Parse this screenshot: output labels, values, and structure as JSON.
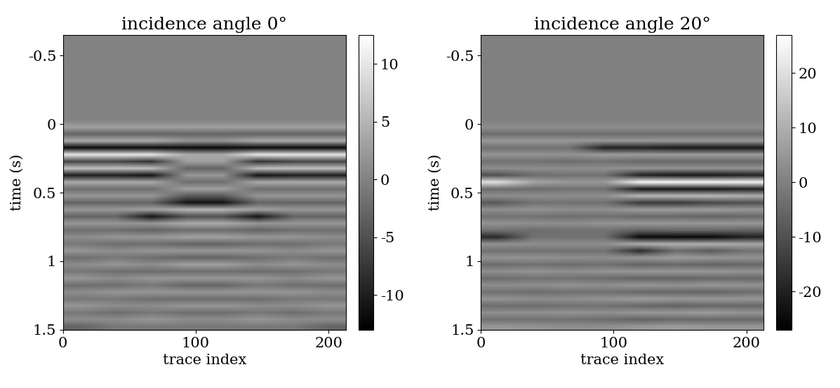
{
  "chart_data": [
    {
      "type": "heatmap",
      "title": "incidence angle 0°",
      "x_label": "trace index",
      "y_label": "time (s)",
      "xlim": [
        0,
        213
      ],
      "ylim": [
        1.5,
        -0.65
      ],
      "xticks": [
        0,
        100,
        200
      ],
      "yticks": [
        -0.5,
        0,
        0.5,
        1,
        1.5
      ],
      "colorbar_range": [
        -13,
        12.5
      ],
      "colorbar_ticks": [
        -10,
        -5,
        0,
        5,
        10
      ],
      "cells": [
        [
          0,
          0,
          0,
          0,
          0,
          0,
          0,
          0
        ],
        [
          0,
          0,
          0,
          0,
          0,
          0,
          0,
          0
        ],
        [
          0,
          0,
          0,
          0,
          0,
          0,
          0,
          0
        ],
        [
          0,
          0,
          0,
          0,
          0,
          0,
          0,
          0
        ],
        [
          0,
          0,
          0,
          0,
          0,
          0,
          0,
          0
        ],
        [
          0,
          0,
          0,
          0,
          0,
          0,
          0,
          0
        ],
        [
          0,
          0,
          0,
          0,
          0,
          0,
          0,
          0
        ],
        [
          0,
          0,
          0,
          0,
          0,
          0,
          0,
          0
        ],
        [
          0,
          0,
          0,
          0,
          0,
          0,
          0,
          0
        ],
        [
          0,
          0,
          0,
          0,
          0,
          0,
          0,
          0
        ],
        [
          0,
          0,
          0,
          0,
          0,
          0,
          0,
          0
        ],
        [
          0,
          0,
          0,
          0,
          0,
          0,
          0,
          0
        ],
        [
          0,
          0,
          0,
          0,
          0,
          0,
          0,
          0
        ],
        [
          3,
          3,
          3,
          3,
          3,
          3,
          3,
          3
        ],
        [
          -3,
          -3,
          -3,
          -3,
          -3,
          -3,
          -3,
          -3
        ],
        [
          4,
          4,
          4,
          2,
          2,
          4,
          4,
          4
        ],
        [
          -12,
          -12,
          -12,
          -12,
          -12,
          -12,
          -12,
          -12
        ],
        [
          10,
          10,
          10,
          4,
          4,
          10,
          10,
          10
        ],
        [
          -6,
          -6,
          -8,
          3,
          3,
          -8,
          -6,
          -6
        ],
        [
          6,
          6,
          6,
          -3,
          -3,
          6,
          6,
          6
        ],
        [
          -10,
          -10,
          -11,
          2,
          2,
          -11,
          -10,
          -10
        ],
        [
          4,
          4,
          4,
          -2,
          -2,
          4,
          4,
          4
        ],
        [
          -2,
          -2,
          -2,
          3,
          3,
          -2,
          -2,
          -2
        ],
        [
          2,
          2,
          2,
          -4,
          -4,
          2,
          2,
          2
        ],
        [
          -3,
          -3,
          -3,
          -11,
          -11,
          -3,
          -3,
          -3
        ],
        [
          2,
          2,
          3,
          5,
          5,
          3,
          2,
          2
        ],
        [
          -3,
          -3,
          -11,
          -5,
          -5,
          -11,
          -3,
          -3
        ],
        [
          2,
          2,
          2,
          4,
          4,
          2,
          2,
          2
        ],
        [
          -2,
          -2,
          -3,
          -2,
          -2,
          -3,
          -2,
          -2
        ],
        [
          1,
          2,
          2,
          3,
          3,
          2,
          2,
          1
        ],
        [
          -1,
          -2,
          -2,
          -3,
          -3,
          -2,
          -2,
          -1
        ],
        [
          2,
          1,
          2,
          2,
          2,
          2,
          1,
          2
        ],
        [
          -2,
          -1,
          -2,
          -3,
          -3,
          -2,
          -1,
          -2
        ],
        [
          1,
          2,
          1,
          3,
          3,
          1,
          2,
          1
        ],
        [
          -1,
          -2,
          -2,
          -2,
          -2,
          -2,
          -2,
          -1
        ],
        [
          2,
          1,
          2,
          2,
          2,
          2,
          1,
          2
        ],
        [
          -2,
          -2,
          -1,
          -3,
          -3,
          -1,
          -2,
          -2
        ],
        [
          1,
          2,
          2,
          2,
          2,
          2,
          2,
          1
        ],
        [
          -1,
          -1,
          -2,
          -2,
          -2,
          -2,
          -1,
          -1
        ],
        [
          2,
          1,
          1,
          2,
          2,
          1,
          1,
          2
        ],
        [
          -1,
          -2,
          -1,
          -2,
          -2,
          -1,
          -2,
          -1
        ],
        [
          1,
          1,
          2,
          1,
          1,
          2,
          1,
          1
        ],
        [
          -3,
          -1,
          -1,
          -1,
          -1,
          -1,
          -1,
          -3
        ]
      ]
    },
    {
      "type": "heatmap",
      "title": "incidence angle 20°",
      "x_label": "trace index",
      "y_label": "time (s)",
      "xlim": [
        0,
        213
      ],
      "ylim": [
        1.5,
        -0.65
      ],
      "xticks": [
        0,
        100,
        200
      ],
      "yticks": [
        -0.5,
        0,
        0.5,
        1,
        1.5
      ],
      "colorbar_range": [
        -27,
        27
      ],
      "colorbar_ticks": [
        -20,
        -10,
        0,
        10,
        20
      ],
      "cells": [
        [
          0,
          0,
          0,
          0,
          0,
          0,
          0,
          0
        ],
        [
          0,
          0,
          0,
          0,
          0,
          0,
          0,
          0
        ],
        [
          0,
          0,
          0,
          0,
          0,
          0,
          0,
          0
        ],
        [
          0,
          0,
          0,
          0,
          0,
          0,
          0,
          0
        ],
        [
          0,
          0,
          0,
          0,
          0,
          0,
          0,
          0
        ],
        [
          0,
          0,
          0,
          0,
          0,
          0,
          0,
          0
        ],
        [
          0,
          0,
          0,
          0,
          0,
          0,
          0,
          0
        ],
        [
          0,
          0,
          0,
          0,
          0,
          0,
          0,
          0
        ],
        [
          0,
          0,
          0,
          0,
          0,
          0,
          0,
          0
        ],
        [
          0,
          0,
          0,
          0,
          0,
          0,
          0,
          0
        ],
        [
          0,
          0,
          0,
          0,
          0,
          0,
          0,
          0
        ],
        [
          0,
          0,
          0,
          0,
          0,
          0,
          0,
          0
        ],
        [
          0,
          0,
          0,
          0,
          0,
          0,
          0,
          0
        ],
        [
          3,
          3,
          3,
          3,
          3,
          3,
          3,
          3
        ],
        [
          -4,
          -4,
          -4,
          -4,
          -4,
          -4,
          -4,
          -4
        ],
        [
          5,
          5,
          5,
          5,
          5,
          5,
          5,
          5
        ],
        [
          -3,
          -3,
          -3,
          -20,
          -20,
          -22,
          -22,
          -22
        ],
        [
          4,
          4,
          4,
          6,
          6,
          6,
          6,
          6
        ],
        [
          -3,
          -3,
          -4,
          -3,
          -5,
          -5,
          -5,
          -5
        ],
        [
          3,
          3,
          3,
          3,
          4,
          4,
          4,
          4
        ],
        [
          -10,
          -4,
          -3,
          -3,
          -20,
          -22,
          -22,
          -20
        ],
        [
          20,
          8,
          5,
          5,
          25,
          25,
          25,
          24
        ],
        [
          -4,
          -4,
          -3,
          -3,
          -22,
          -22,
          -22,
          -20
        ],
        [
          3,
          3,
          3,
          3,
          12,
          12,
          12,
          10
        ],
        [
          -8,
          -3,
          -3,
          -3,
          -15,
          -15,
          -12,
          -10
        ],
        [
          3,
          4,
          3,
          3,
          6,
          6,
          6,
          5
        ],
        [
          -3,
          -3,
          -4,
          -3,
          -5,
          -5,
          -6,
          -5
        ],
        [
          4,
          3,
          3,
          4,
          5,
          5,
          5,
          5
        ],
        [
          -3,
          -4,
          -3,
          -3,
          -6,
          -5,
          -5,
          -6
        ],
        [
          -18,
          -3,
          -3,
          -3,
          -25,
          -25,
          -25,
          -20
        ],
        [
          4,
          3,
          3,
          3,
          10,
          10,
          10,
          8
        ],
        [
          -3,
          -3,
          -3,
          -3,
          -18,
          -4,
          -8,
          -3
        ],
        [
          4,
          4,
          3,
          3,
          5,
          6,
          5,
          4
        ],
        [
          -4,
          -3,
          -4,
          -3,
          -6,
          -5,
          -6,
          -5
        ],
        [
          3,
          4,
          3,
          4,
          5,
          5,
          5,
          4
        ],
        [
          -4,
          -3,
          -3,
          -4,
          -6,
          -6,
          -5,
          -5
        ],
        [
          3,
          3,
          4,
          3,
          5,
          4,
          5,
          4
        ],
        [
          -3,
          -4,
          -3,
          -3,
          -5,
          -5,
          -6,
          -4
        ],
        [
          4,
          3,
          3,
          4,
          6,
          5,
          5,
          5
        ],
        [
          -4,
          -4,
          -3,
          -3,
          -5,
          -6,
          -5,
          -5
        ],
        [
          3,
          3,
          4,
          3,
          5,
          5,
          6,
          4
        ],
        [
          -3,
          -3,
          -3,
          -4,
          -6,
          -5,
          -5,
          -5
        ],
        [
          5,
          4,
          3,
          3,
          5,
          6,
          5,
          5
        ]
      ]
    }
  ]
}
